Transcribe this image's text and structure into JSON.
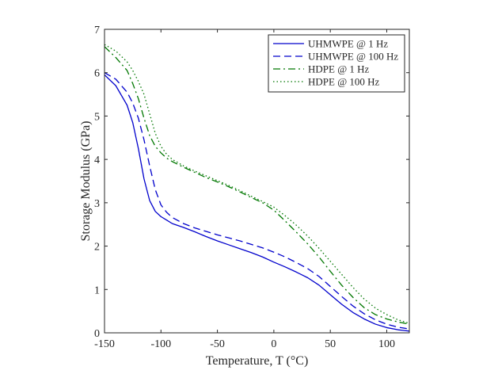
{
  "chart_data": {
    "type": "line",
    "title": "",
    "xlabel": "Temperature, T (°C)",
    "ylabel": "Storage Modulus (GPa)",
    "xlim": [
      -150,
      120
    ],
    "ylim": [
      0,
      7
    ],
    "xticks": [
      -150,
      -100,
      -50,
      0,
      50,
      100
    ],
    "yticks": [
      0,
      1,
      2,
      3,
      4,
      5,
      6,
      7
    ],
    "grid": false,
    "legend_position": "top-right",
    "series": [
      {
        "name": "UHMWPE @ 1 Hz",
        "color": "#0000cc",
        "line_style": "solid",
        "x": [
          -150,
          -140,
          -130,
          -125,
          -120,
          -115,
          -110,
          -105,
          -100,
          -95,
          -90,
          -80,
          -70,
          -60,
          -50,
          -40,
          -30,
          -20,
          -10,
          0,
          10,
          20,
          30,
          40,
          50,
          60,
          70,
          80,
          90,
          100,
          110,
          120
        ],
        "y": [
          5.95,
          5.7,
          5.25,
          4.85,
          4.25,
          3.55,
          3.05,
          2.8,
          2.68,
          2.6,
          2.52,
          2.43,
          2.33,
          2.22,
          2.12,
          2.03,
          1.94,
          1.85,
          1.75,
          1.63,
          1.52,
          1.4,
          1.27,
          1.1,
          0.88,
          0.66,
          0.47,
          0.32,
          0.2,
          0.12,
          0.07,
          0.04
        ]
      },
      {
        "name": "UHMWPE @ 100 Hz",
        "color": "#0000cc",
        "line_style": "dashed",
        "x": [
          -150,
          -140,
          -130,
          -125,
          -120,
          -115,
          -110,
          -105,
          -100,
          -95,
          -90,
          -80,
          -70,
          -60,
          -50,
          -40,
          -30,
          -20,
          -10,
          0,
          10,
          20,
          30,
          40,
          50,
          60,
          70,
          80,
          90,
          100,
          110,
          120
        ],
        "y": [
          6.0,
          5.85,
          5.55,
          5.3,
          4.95,
          4.45,
          3.85,
          3.3,
          2.95,
          2.78,
          2.66,
          2.52,
          2.42,
          2.34,
          2.26,
          2.19,
          2.12,
          2.04,
          1.96,
          1.86,
          1.75,
          1.62,
          1.48,
          1.3,
          1.07,
          0.84,
          0.62,
          0.44,
          0.3,
          0.2,
          0.13,
          0.09
        ]
      },
      {
        "name": "HDPE @ 1 Hz",
        "color": "#007700",
        "line_style": "dashdot",
        "x": [
          -150,
          -140,
          -130,
          -125,
          -120,
          -115,
          -110,
          -105,
          -100,
          -95,
          -90,
          -80,
          -70,
          -60,
          -50,
          -40,
          -30,
          -20,
          -10,
          0,
          10,
          20,
          30,
          40,
          50,
          60,
          70,
          80,
          90,
          100,
          110,
          120
        ],
        "y": [
          6.6,
          6.35,
          6.05,
          5.75,
          5.4,
          4.95,
          4.55,
          4.3,
          4.15,
          4.03,
          3.95,
          3.82,
          3.7,
          3.58,
          3.48,
          3.37,
          3.25,
          3.12,
          3.0,
          2.83,
          2.58,
          2.32,
          2.05,
          1.75,
          1.42,
          1.1,
          0.82,
          0.58,
          0.42,
          0.32,
          0.25,
          0.2
        ]
      },
      {
        "name": "HDPE @ 100 Hz",
        "color": "#007700",
        "line_style": "dotted",
        "x": [
          -150,
          -140,
          -130,
          -125,
          -120,
          -115,
          -110,
          -105,
          -100,
          -95,
          -90,
          -80,
          -70,
          -60,
          -50,
          -40,
          -30,
          -20,
          -10,
          0,
          10,
          20,
          30,
          40,
          50,
          60,
          70,
          80,
          90,
          100,
          110,
          120
        ],
        "y": [
          6.65,
          6.5,
          6.25,
          6.05,
          5.8,
          5.5,
          5.05,
          4.6,
          4.3,
          4.12,
          4.0,
          3.85,
          3.73,
          3.62,
          3.51,
          3.4,
          3.28,
          3.15,
          3.03,
          2.9,
          2.7,
          2.48,
          2.23,
          1.95,
          1.65,
          1.35,
          1.05,
          0.78,
          0.57,
          0.42,
          0.3,
          0.22
        ]
      }
    ]
  }
}
